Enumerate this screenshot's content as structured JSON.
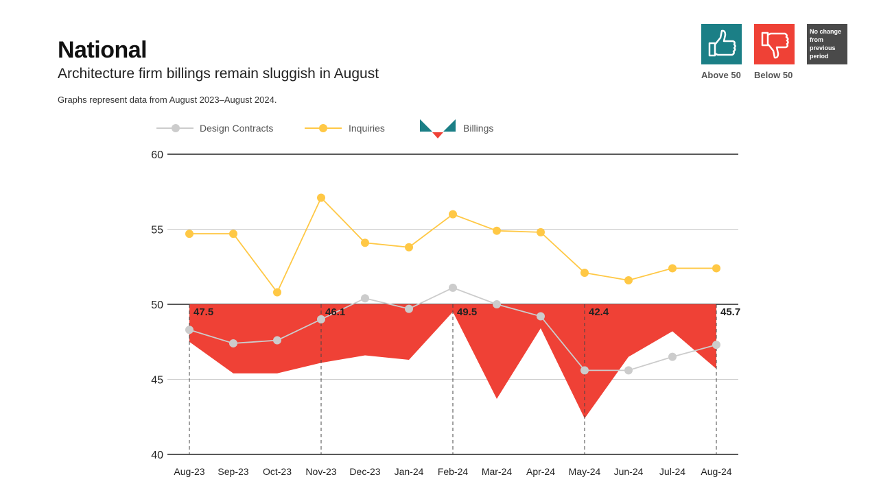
{
  "header": {
    "title": "National",
    "subtitle": "Architecture firm billings remain sluggish in August",
    "note": "Graphs represent data from August 2023–August 2024."
  },
  "key": {
    "above": {
      "label": "Above 50",
      "icon": "thumbs-up-icon",
      "color": "#1b7f86"
    },
    "below": {
      "label": "Below 50",
      "icon": "thumbs-down-icon",
      "color": "#ef4136"
    },
    "nochange": {
      "label": "No change from previous period",
      "color": "#4a4a4a"
    }
  },
  "chart_data": {
    "type": "line",
    "categories": [
      "Aug-23",
      "Sep-23",
      "Oct-23",
      "Nov-23",
      "Dec-23",
      "Jan-24",
      "Feb-24",
      "Mar-24",
      "Apr-24",
      "May-24",
      "Jun-24",
      "Jul-24",
      "Aug-24"
    ],
    "ylim": [
      40,
      60
    ],
    "yticks": [
      "40",
      "45",
      "50",
      "55",
      "60"
    ],
    "baseline": 50,
    "legend": {
      "position": "top-left"
    },
    "series": [
      {
        "name": "Design Contracts",
        "color": "#cccccc",
        "values": [
          48.3,
          47.4,
          47.6,
          49.0,
          50.4,
          49.7,
          51.1,
          50.0,
          49.2,
          45.6,
          45.6,
          46.5,
          47.3
        ]
      },
      {
        "name": "Inquiries",
        "color": "#ffc845",
        "values": [
          54.7,
          54.7,
          50.8,
          57.1,
          54.1,
          53.8,
          56.0,
          54.9,
          54.8,
          52.1,
          51.6,
          52.4,
          52.4
        ]
      },
      {
        "name": "Billings",
        "type": "area",
        "color_below": "#ef4136",
        "color_above": "#1b7f86",
        "values": [
          47.5,
          45.4,
          45.4,
          46.1,
          46.6,
          46.3,
          49.5,
          43.7,
          48.4,
          42.4,
          46.5,
          48.2,
          45.7
        ]
      }
    ],
    "data_labels": [
      {
        "index": 0,
        "text": "47.5"
      },
      {
        "index": 3,
        "text": "46.1"
      },
      {
        "index": 6,
        "text": "49.5"
      },
      {
        "index": 9,
        "text": "42.4"
      },
      {
        "index": 12,
        "text": "45.7"
      }
    ]
  }
}
